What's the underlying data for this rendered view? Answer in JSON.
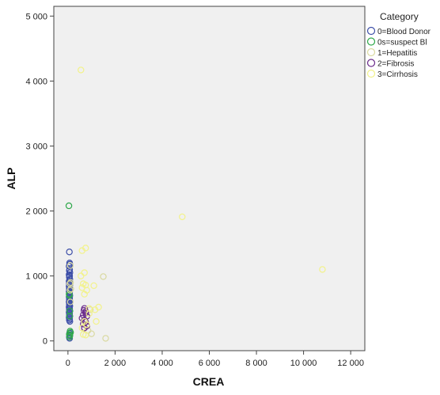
{
  "chart_data": {
    "type": "scatter",
    "xlabel": "CREA",
    "ylabel": "ALP",
    "xlim": [
      -600,
      12600
    ],
    "ylim": [
      -150,
      5150
    ],
    "x_ticks": [
      0,
      2000,
      4000,
      6000,
      8000,
      10000,
      12000
    ],
    "x_tick_labels": [
      "0",
      "2 000",
      "4 000",
      "6 000",
      "8 000",
      "10 000",
      "12 000"
    ],
    "y_ticks": [
      0,
      1000,
      2000,
      3000,
      4000,
      5000
    ],
    "y_tick_labels": [
      "0",
      "1 000",
      "2 000",
      "3 000",
      "4 000",
      "5 000"
    ],
    "grid": false,
    "background": "#f0f0f0",
    "legend": {
      "title": "Category",
      "placement": "right"
    },
    "series": [
      {
        "name": "0=Blood Donor",
        "color": "#3d4fa8",
        "points": [
          [
            60,
            1370
          ],
          [
            70,
            1200
          ],
          [
            80,
            1180
          ],
          [
            50,
            1150
          ],
          [
            70,
            1100
          ],
          [
            60,
            1080
          ],
          [
            80,
            1050
          ],
          [
            50,
            1020
          ],
          [
            70,
            1000
          ],
          [
            60,
            980
          ],
          [
            80,
            950
          ],
          [
            50,
            920
          ],
          [
            70,
            900
          ],
          [
            60,
            880
          ],
          [
            80,
            860
          ],
          [
            50,
            840
          ],
          [
            70,
            820
          ],
          [
            60,
            800
          ],
          [
            80,
            780
          ],
          [
            50,
            760
          ],
          [
            70,
            740
          ],
          [
            60,
            720
          ],
          [
            80,
            700
          ],
          [
            50,
            680
          ],
          [
            70,
            660
          ],
          [
            60,
            640
          ],
          [
            80,
            620
          ],
          [
            50,
            600
          ],
          [
            70,
            580
          ],
          [
            60,
            560
          ],
          [
            80,
            540
          ],
          [
            50,
            520
          ],
          [
            70,
            500
          ],
          [
            60,
            480
          ],
          [
            80,
            460
          ],
          [
            50,
            440
          ],
          [
            70,
            420
          ],
          [
            60,
            400
          ],
          [
            80,
            380
          ],
          [
            50,
            360
          ],
          [
            70,
            340
          ],
          [
            60,
            320
          ],
          [
            80,
            300
          ],
          [
            70,
            40
          ],
          [
            60,
            60
          ],
          [
            80,
            80
          ],
          [
            70,
            120
          ]
        ]
      },
      {
        "name": "0s=suspect Bl",
        "color": "#2ea84a",
        "points": [
          [
            40,
            2080
          ],
          [
            50,
            720
          ],
          [
            60,
            700
          ],
          [
            80,
            460
          ],
          [
            70,
            380
          ],
          [
            90,
            150
          ],
          [
            110,
            130
          ],
          [
            60,
            100
          ],
          [
            80,
            90
          ],
          [
            70,
            60
          ]
        ]
      },
      {
        "name": "1=Hepatitis",
        "color": "#d9d9a0",
        "points": [
          [
            100,
            1160
          ],
          [
            110,
            900
          ],
          [
            80,
            880
          ],
          [
            120,
            800
          ],
          [
            90,
            780
          ],
          [
            100,
            600
          ],
          [
            1500,
            990
          ],
          [
            1000,
            110
          ],
          [
            1600,
            40
          ],
          [
            850,
            160
          ],
          [
            700,
            300
          ],
          [
            950,
            480
          ]
        ]
      },
      {
        "name": "2=Fibrosis",
        "color": "#6a2a8a",
        "points": [
          [
            700,
            500
          ],
          [
            750,
            450
          ],
          [
            650,
            400
          ],
          [
            800,
            380
          ],
          [
            600,
            350
          ],
          [
            700,
            320
          ],
          [
            750,
            290
          ],
          [
            650,
            260
          ],
          [
            800,
            230
          ],
          [
            700,
            200
          ],
          [
            750,
            430
          ],
          [
            680,
            470
          ]
        ]
      },
      {
        "name": "3=Cirrhosis",
        "color": "#f2f28a",
        "points": [
          [
            550,
            4170
          ],
          [
            4850,
            1910
          ],
          [
            10800,
            1100
          ],
          [
            750,
            1430
          ],
          [
            600,
            1390
          ],
          [
            700,
            1050
          ],
          [
            550,
            1000
          ],
          [
            650,
            880
          ],
          [
            750,
            860
          ],
          [
            1100,
            850
          ],
          [
            600,
            820
          ],
          [
            800,
            780
          ],
          [
            700,
            720
          ],
          [
            1300,
            520
          ],
          [
            900,
            500
          ],
          [
            1150,
            480
          ],
          [
            700,
            300
          ],
          [
            800,
            250
          ],
          [
            600,
            200
          ],
          [
            650,
            100
          ],
          [
            750,
            90
          ],
          [
            900,
            420
          ],
          [
            1200,
            300
          ]
        ]
      }
    ]
  }
}
